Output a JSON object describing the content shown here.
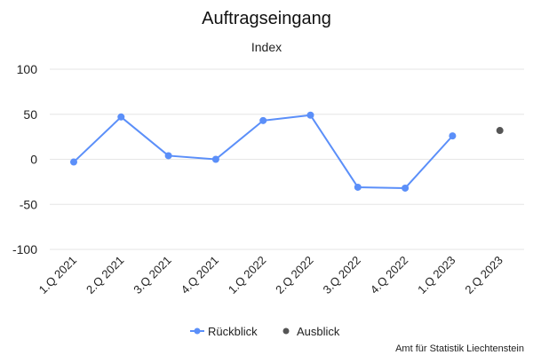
{
  "chart_data": {
    "type": "line",
    "title": "Auftragseingang",
    "subtitle": "Index",
    "categories": [
      "1.Q 2021",
      "2.Q 2021",
      "3.Q 2021",
      "4.Q 2021",
      "1.Q 2022",
      "2.Q 2022",
      "3.Q 2022",
      "4.Q 2022",
      "1.Q 2023",
      "2.Q 2023"
    ],
    "ylim": [
      -100,
      100
    ],
    "yticks": [
      100,
      50,
      0,
      -50,
      -100
    ],
    "grid": true,
    "legend_position": "bottom",
    "series": [
      {
        "name": "Rückblick",
        "color": "#5b8ff9",
        "values": [
          -3,
          47,
          4,
          0,
          43,
          49,
          -31,
          -32,
          26,
          null
        ]
      },
      {
        "name": "Ausblick",
        "color": "#555555",
        "values": [
          null,
          null,
          null,
          null,
          null,
          null,
          null,
          null,
          null,
          32
        ]
      }
    ],
    "credit": "Amt für Statistik Liechtenstein"
  }
}
